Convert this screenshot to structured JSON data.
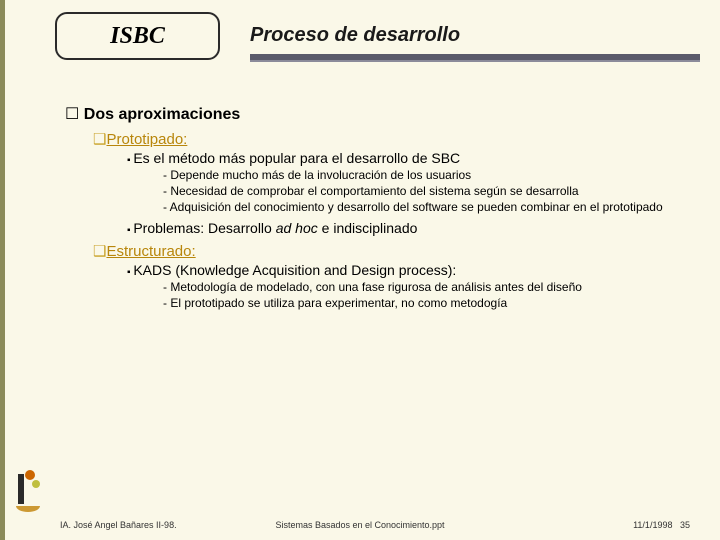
{
  "colors": {
    "background": "#faf8e8",
    "left_stripe": "#8b8b5a",
    "title_rule": "#5a5a6a",
    "accent_gold": "#b8860b"
  },
  "header": {
    "box_label": "ISBC",
    "slide_title": "Proceso de desarrollo"
  },
  "body": {
    "main_heading": "Dos aproximaciones",
    "section1": {
      "label": "Prototipado:",
      "point1": "Es el método más popular para el desarrollo de SBC",
      "sub1": "Depende mucho más de la involucración de los usuarios",
      "sub2": "Necesidad de comprobar el comportamiento del sistema según se desarrolla",
      "sub3": "Adquisición del conocimiento y desarrollo del software se pueden combinar en el prototipado",
      "point2_prefix": "Problemas: Desarrollo ",
      "point2_italic": "ad hoc",
      "point2_suffix": "  e indisciplinado"
    },
    "section2": {
      "label": "Estructurado:",
      "point1": "KADS (Knowledge Acquisition and Design process):",
      "sub1": "Metodología de modelado, con una  fase rigurosa de análisis antes del diseño",
      "sub2": "El prototipado se utiliza para experimentar, no como metodogía"
    }
  },
  "footer": {
    "left": "IA. José Angel Bañares II-98.",
    "center": "Sistemas Basados en el Conocimiento.ppt",
    "date": "11/1/1998",
    "page": "35"
  }
}
